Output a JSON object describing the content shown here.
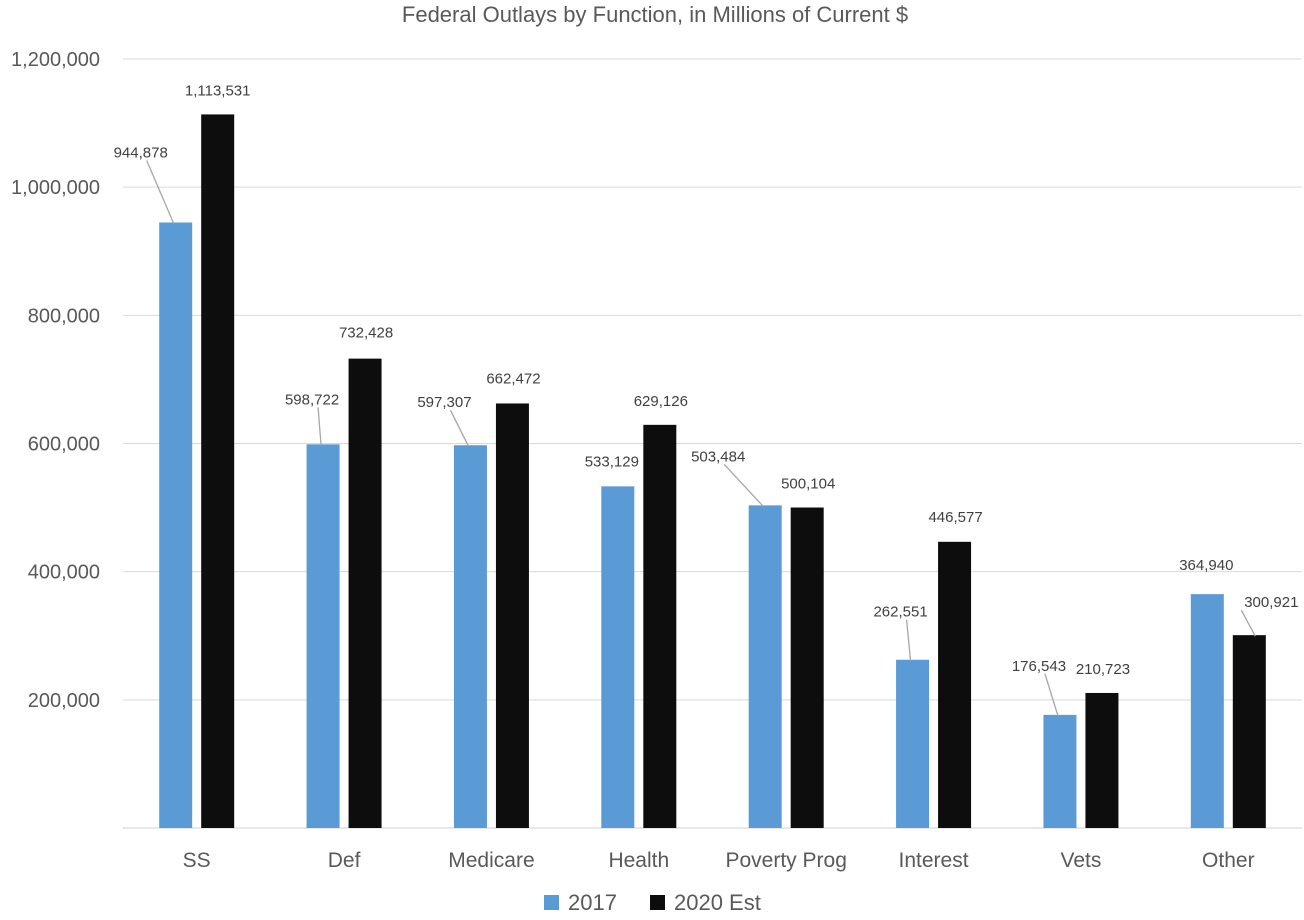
{
  "chart_data": {
    "type": "bar",
    "title": "Federal Outlays by Function, in Millions of Current $",
    "xlabel": "",
    "ylabel": "",
    "categories": [
      "SS",
      "Def",
      "Medicare",
      "Health",
      "Poverty Prog",
      "Interest",
      "Vets",
      "Other"
    ],
    "series": [
      {
        "name": "2017",
        "color": "#5b9bd5",
        "values": [
          944878,
          598722,
          597307,
          533129,
          503484,
          262551,
          176543,
          364940
        ],
        "labels": [
          "944,878",
          "598,722",
          "597,307",
          "533,129",
          "503,484",
          "262,551",
          "176,543",
          "364,940"
        ]
      },
      {
        "name": "2020 Est",
        "color": "#0d0d0d",
        "values": [
          1113531,
          732428,
          662472,
          629126,
          500104,
          446577,
          210723,
          300921
        ],
        "labels": [
          "1,113,531",
          "732,428",
          "662,472",
          "629,126",
          "500,104",
          "446,577",
          "210,723",
          "300,921"
        ]
      }
    ],
    "ylim": [
      0,
      1200000
    ],
    "yticks": [
      0,
      200000,
      400000,
      600000,
      800000,
      1000000,
      1200000
    ],
    "ytick_labels": [
      "",
      "200,000",
      "400,000",
      "600,000",
      "800,000",
      "1,000,000",
      "1,200,000"
    ],
    "grid": true,
    "legend_position": "bottom"
  }
}
